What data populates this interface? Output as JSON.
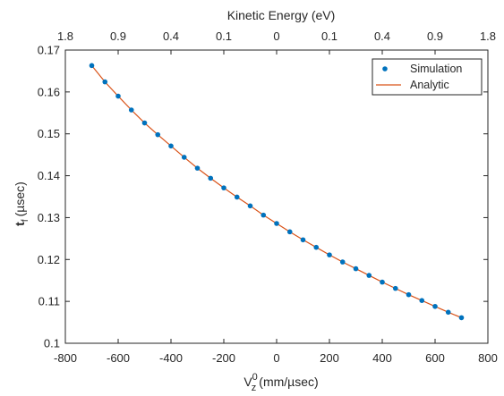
{
  "chart_data": {
    "type": "scatter",
    "xlabel": {
      "base": "V",
      "superscript": "0",
      "subscript": "z",
      "unit": "(mm/µsec)"
    },
    "ylabel": {
      "base": "t",
      "subscript": "f",
      "unit": "(µsec)"
    },
    "top_xlabel": "Kinetic Energy (eV)",
    "xlim": [
      -800,
      800
    ],
    "ylim": [
      0.1,
      0.17
    ],
    "x_ticks": [
      -800,
      -600,
      -400,
      -200,
      0,
      200,
      400,
      600,
      800
    ],
    "x_tick_labels": [
      "-800",
      "-600",
      "-400",
      "-200",
      "0",
      "200",
      "400",
      "600",
      "800"
    ],
    "y_ticks": [
      0.1,
      0.11,
      0.12,
      0.13,
      0.14,
      0.15,
      0.16,
      0.17
    ],
    "y_tick_labels": [
      "0.1",
      "0.11",
      "0.12",
      "0.13",
      "0.14",
      "0.15",
      "0.16",
      "0.17"
    ],
    "top_ticks": [
      {
        "x": -800,
        "label": "1.8"
      },
      {
        "x": -600,
        "label": "0.9"
      },
      {
        "x": -400,
        "label": "0.4"
      },
      {
        "x": -200,
        "label": "0.1"
      },
      {
        "x": 0,
        "label": "0"
      },
      {
        "x": 200,
        "label": "0.1"
      },
      {
        "x": 400,
        "label": "0.4"
      },
      {
        "x": 600,
        "label": "0.9"
      },
      {
        "x": 800,
        "label": "1.8"
      }
    ],
    "grid": false,
    "legend_position": "top-right",
    "series": [
      {
        "name": "Simulation",
        "type": "scatter",
        "color": "#0072BD",
        "x": [
          -700,
          -650,
          -600,
          -550,
          -500,
          -450,
          -400,
          -350,
          -300,
          -250,
          -200,
          -150,
          -100,
          -50,
          0,
          50,
          100,
          150,
          200,
          250,
          300,
          350,
          400,
          450,
          500,
          550,
          600,
          650,
          700
        ],
        "y": [
          0.1663,
          0.1624,
          0.159,
          0.1557,
          0.1526,
          0.1498,
          0.1471,
          0.1444,
          0.1418,
          0.1394,
          0.1371,
          0.1349,
          0.1328,
          0.1306,
          0.1286,
          0.1266,
          0.1247,
          0.1229,
          0.1211,
          0.1194,
          0.1178,
          0.1162,
          0.1146,
          0.1131,
          0.1116,
          0.1102,
          0.1088,
          0.1074,
          0.1061
        ]
      },
      {
        "name": "Analytic",
        "type": "line",
        "color": "#D95319",
        "x": [
          -700,
          -650,
          -600,
          -550,
          -500,
          -450,
          -400,
          -350,
          -300,
          -250,
          -200,
          -150,
          -100,
          -50,
          0,
          50,
          100,
          150,
          200,
          250,
          300,
          350,
          400,
          450,
          500,
          550,
          600,
          650,
          700
        ],
        "y": [
          0.1663,
          0.1624,
          0.159,
          0.1557,
          0.1526,
          0.1498,
          0.1471,
          0.1444,
          0.1418,
          0.1394,
          0.1371,
          0.1349,
          0.1328,
          0.1306,
          0.1286,
          0.1266,
          0.1247,
          0.1229,
          0.1211,
          0.1194,
          0.1178,
          0.1162,
          0.1146,
          0.1131,
          0.1116,
          0.1102,
          0.1088,
          0.1074,
          0.1061
        ]
      }
    ]
  }
}
